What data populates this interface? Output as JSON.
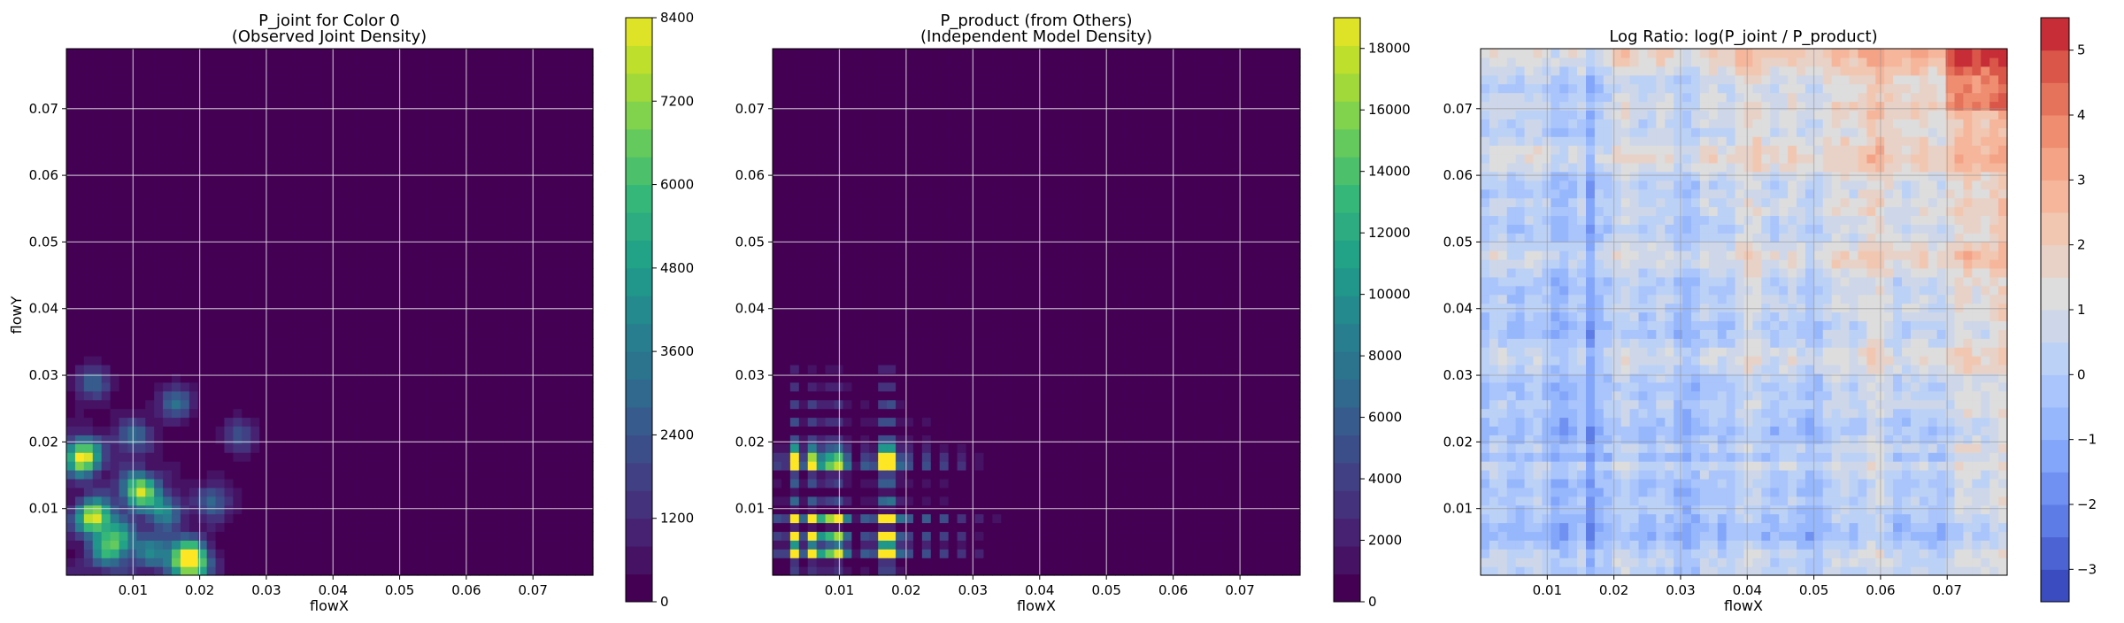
{
  "chart_data": [
    {
      "type": "heatmap",
      "title": [
        "P_joint for Color 0",
        "(Observed Joint Density)"
      ],
      "xlabel": "flowX",
      "ylabel": "flowY",
      "xlim": [
        0,
        0.079
      ],
      "ylim": [
        0,
        0.079
      ],
      "xticks": [
        "0.01",
        "0.02",
        "0.03",
        "0.04",
        "0.05",
        "0.06",
        "0.07"
      ],
      "yticks": [
        "0.01",
        "0.02",
        "0.03",
        "0.04",
        "0.05",
        "0.06",
        "0.07"
      ],
      "grid": true,
      "colormap": "viridis",
      "colorbar": {
        "min": 0,
        "max": 8400,
        "ticks": [
          "0",
          "1200",
          "2400",
          "3600",
          "4800",
          "6000",
          "7200",
          "8400"
        ]
      },
      "peaks": [
        {
          "x": 0.0025,
          "y": 0.0178,
          "v": 8400
        },
        {
          "x": 0.0042,
          "y": 0.0088,
          "v": 8000
        },
        {
          "x": 0.011,
          "y": 0.0128,
          "v": 7200
        },
        {
          "x": 0.018,
          "y": 0.003,
          "v": 6600
        },
        {
          "x": 0.019,
          "y": 0.0015,
          "v": 5200
        },
        {
          "x": 0.008,
          "y": 0.0055,
          "v": 4400
        },
        {
          "x": 0.0145,
          "y": 0.0098,
          "v": 3800
        },
        {
          "x": 0.0165,
          "y": 0.026,
          "v": 3200
        },
        {
          "x": 0.004,
          "y": 0.029,
          "v": 2800
        },
        {
          "x": 0.01,
          "y": 0.021,
          "v": 3000
        },
        {
          "x": 0.022,
          "y": 0.011,
          "v": 2800
        },
        {
          "x": 0.026,
          "y": 0.021,
          "v": 2400
        },
        {
          "x": 0.006,
          "y": 0.0035,
          "v": 3600
        },
        {
          "x": 0.013,
          "y": 0.0035,
          "v": 3200
        }
      ]
    },
    {
      "type": "heatmap",
      "title": [
        "P_product (from Others)",
        "(Independent Model Density)"
      ],
      "xlabel": "flowX",
      "ylabel": "",
      "xlim": [
        0,
        0.079
      ],
      "ylim": [
        0,
        0.079
      ],
      "xticks": [
        "0.01",
        "0.02",
        "0.03",
        "0.04",
        "0.05",
        "0.06",
        "0.07"
      ],
      "yticks": [
        "0.01",
        "0.02",
        "0.03",
        "0.04",
        "0.05",
        "0.06",
        "0.07"
      ],
      "grid": true,
      "colormap": "viridis",
      "colorbar": {
        "min": 0,
        "max": 19000,
        "ticks": [
          "0",
          "2000",
          "4000",
          "6000",
          "8000",
          "10000",
          "12000",
          "14000",
          "16000",
          "18000"
        ]
      },
      "x_marginal_peaks": [
        0.0035,
        0.0065,
        0.0095,
        0.0165,
        0.018
      ],
      "y_marginal_peaks": [
        0.0035,
        0.0055,
        0.0085,
        0.0165,
        0.0183
      ],
      "peak_value": 18000
    },
    {
      "type": "heatmap",
      "title": [
        "Log Ratio: log(P_joint / P_product)"
      ],
      "xlabel": "flowX",
      "ylabel": "",
      "xlim": [
        0,
        0.079
      ],
      "ylim": [
        0,
        0.079
      ],
      "xticks": [
        "0.01",
        "0.02",
        "0.03",
        "0.04",
        "0.05",
        "0.06",
        "0.07"
      ],
      "yticks": [
        "0.01",
        "0.02",
        "0.03",
        "0.04",
        "0.05",
        "0.06",
        "0.07"
      ],
      "grid": true,
      "colormap": "coolwarm",
      "colorbar": {
        "min": -3.5,
        "max": 5.5,
        "ticks": [
          "−3",
          "−2",
          "−1",
          "0",
          "1",
          "2",
          "3",
          "4",
          "5"
        ]
      },
      "max_value": 5.4,
      "min_value": -3.3
    }
  ]
}
